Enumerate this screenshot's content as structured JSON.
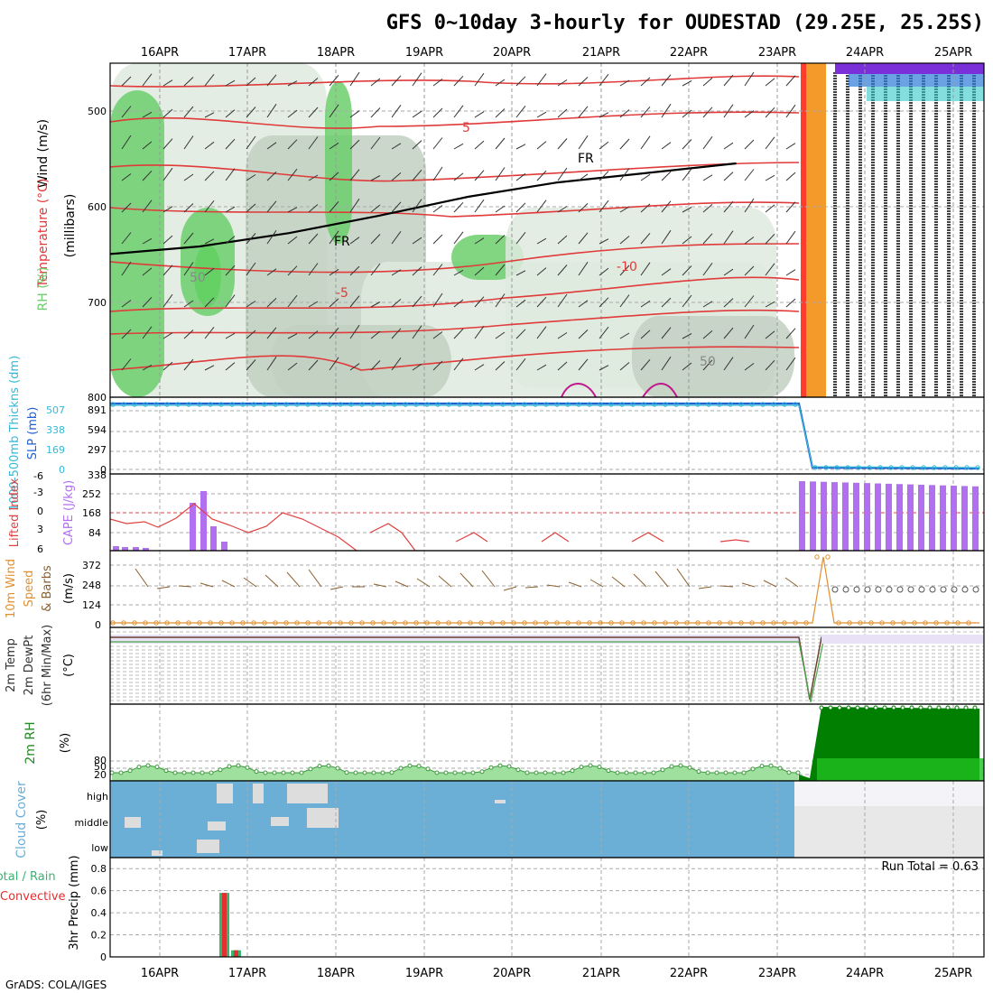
{
  "title": "GFS 0~10day 3-hourly for OUDESTAD (29.25E, 25.25S)",
  "credit": "GrADS: COLA/IGES",
  "dates": [
    "16APR",
    "17APR",
    "18APR",
    "19APR",
    "20APR",
    "21APR",
    "22APR",
    "23APR",
    "24APR",
    "25APR"
  ],
  "colors": {
    "temp_contour": "#e03a3a",
    "freezing": "#000000",
    "rh_light": "#dfeadf",
    "rh_mid": "#c2d0c2",
    "rh_green": "#6ccf6c",
    "rh_bright": "#23d823",
    "slp": "#2060d0",
    "thickness": "#34b8d8",
    "cape": "#b070f0",
    "lifted": "#e04040",
    "wind": "#e09030",
    "barb": "#8a6030",
    "rh2m": "#228b22",
    "cloud": "#6baed6",
    "precip_total": "#3cb371",
    "precip_conv": "#e03030"
  },
  "panels": {
    "upper": {
      "ylabel_wind": "Wind (m/s)",
      "ylabel_temp": "Temperature (°C)",
      "ylabel_rh": "RH (%)",
      "ylabel_unit": "(millibars)",
      "yticks": [
        "500",
        "600",
        "700",
        "800"
      ],
      "contour_labels": [
        "5",
        "-5",
        "-10",
        "5",
        "FR",
        "FR",
        "50",
        "50",
        "-10"
      ]
    },
    "slp": {
      "ylabel_thick": "1000-500mb Thickns (dm)",
      "ylabel_slp": "SLP (mb)",
      "ticks_thick": [
        "507",
        "338",
        "169",
        "0"
      ],
      "ticks_slp": [
        "891",
        "594",
        "297",
        "0",
        "338"
      ]
    },
    "cape": {
      "ylabel_li": "Lifted Index",
      "ylabel_cape": "CAPE (J/kg)",
      "ticks_li": [
        "-6",
        "-3",
        "0",
        "3",
        "6"
      ],
      "ticks_cape": [
        "252",
        "168",
        "84"
      ]
    },
    "wind": {
      "ylabel_a": "10m Wind",
      "ylabel_b": "Speed",
      "ylabel_c": "& Barbs",
      "ylabel_unit": "(m/s)",
      "ticks": [
        "372",
        "248",
        "124",
        "0"
      ]
    },
    "temp2m": {
      "ylabel_a": "2m Temp",
      "ylabel_b": "2m DewPt",
      "ylabel_c": "(6hr Min/Max)",
      "ylabel_unit": "(°C)"
    },
    "rh2m": {
      "ylabel": "2m RH",
      "ylabel_unit": "(%)",
      "ticks": [
        "80",
        "50",
        "20"
      ]
    },
    "cloud": {
      "ylabel": "Cloud Cover",
      "ylabel_unit": "(%)",
      "levels": [
        "high",
        "middle",
        "low"
      ]
    },
    "precip": {
      "ylabel_a": "Total / Rain",
      "ylabel_b": "Convective",
      "ylabel_c": "3hr Precip (mm)",
      "ticks": [
        "0.8",
        "0.6",
        "0.4",
        "0.2",
        "0"
      ],
      "run_total": "Run Total = 0.63"
    }
  },
  "chart_data": [
    {
      "type": "area",
      "name": "upper-air cross section",
      "x_dates": [
        "16APR",
        "17APR",
        "18APR",
        "19APR",
        "20APR",
        "21APR",
        "22APR",
        "23APR",
        "24APR",
        "25APR"
      ],
      "ylim_mb": [
        800,
        450
      ],
      "freezing_level_mb": {
        "x_days": [
          0,
          1,
          2,
          3,
          4,
          5,
          6,
          7
        ],
        "values": [
          650,
          642,
          628,
          610,
          590,
          575,
          565,
          555
        ]
      }
    },
    {
      "type": "line",
      "name": "SLP and thickness",
      "series": [
        {
          "name": "SLP (mb)",
          "values": [
            891,
            891,
            891,
            891,
            891,
            891,
            891,
            891,
            0,
            0
          ]
        },
        {
          "name": "1000-500mb Thickns (dm)",
          "values": [
            507,
            507,
            507,
            507,
            507,
            507,
            507,
            507,
            0,
            0
          ]
        }
      ]
    },
    {
      "type": "bar",
      "name": "CAPE",
      "series_name": "CAPE (J/kg)",
      "values_day": [
        5,
        0,
        0,
        0,
        0,
        0,
        0,
        0,
        290,
        290
      ],
      "peak_17apr": 240
    },
    {
      "type": "line",
      "name": "Lifted Index",
      "values_day": [
        1,
        0,
        3,
        6,
        6,
        6,
        6,
        6,
        null,
        null
      ]
    },
    {
      "type": "line",
      "name": "10m Wind Speed",
      "values_day": [
        0,
        0,
        0,
        0,
        0,
        0,
        0,
        0,
        0,
        0
      ],
      "spike_23apr": 372
    },
    {
      "type": "area",
      "name": "2m RH",
      "series_name": "2m RH (%)",
      "values_day": [
        20,
        30,
        25,
        20,
        22,
        18,
        20,
        15,
        300,
        300
      ]
    },
    {
      "type": "heatmap",
      "name": "Cloud Cover",
      "levels": [
        "high",
        "middle",
        "low"
      ],
      "note": "cover 100% except scattered gaps, after 23APR 0%"
    },
    {
      "type": "bar",
      "name": "3hr Precip",
      "ylim": [
        0,
        0.9
      ],
      "bars": [
        {
          "date": "16APR",
          "hour": 18,
          "total": 0.58,
          "convective": 0.58
        },
        {
          "date": "16APR",
          "hour": 21,
          "total": 0.06,
          "convective": 0.06
        }
      ],
      "run_total": 0.63
    }
  ]
}
